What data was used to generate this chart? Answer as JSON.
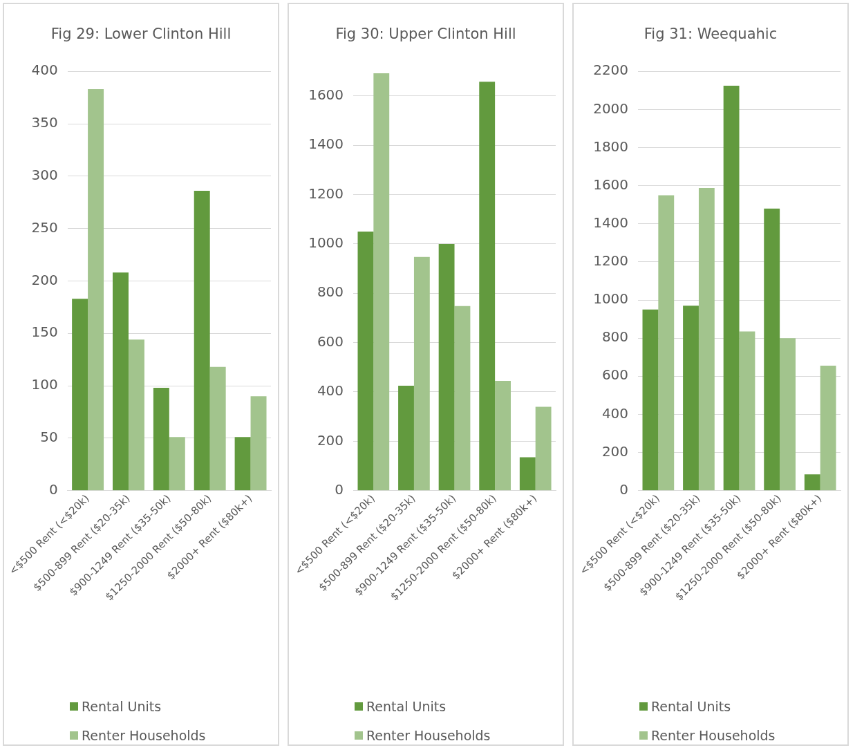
{
  "chart_data": [
    {
      "type": "bar",
      "title": "Fig 29: Lower Clinton Hill",
      "categories": [
        "<$500 Rent (<$20k)",
        "$500-899 Rent ($20-35k)",
        "$900-1249 Rent ($35-50k)",
        "$1250-2000 Rent ($50-80k)",
        "$2000+ Rent ($80k+)"
      ],
      "series": [
        {
          "name": "Rental Units",
          "color": "#629a3e",
          "values": [
            183,
            208,
            98,
            286,
            51
          ]
        },
        {
          "name": "Renter Households",
          "color": "#a2c48d",
          "values": [
            383,
            144,
            51,
            118,
            90
          ]
        }
      ],
      "ylim": [
        0,
        400
      ],
      "yticks": [
        0,
        50,
        100,
        150,
        200,
        250,
        300,
        350,
        400
      ],
      "grid": "y",
      "legend": "bottom"
    },
    {
      "type": "bar",
      "title": "Fig 30: Upper Clinton Hill",
      "categories": [
        "<$500 Rent (<$20k)",
        "$500-899 Rent ($20-35k)",
        "$900-1249 Rent ($35-50k)",
        "$1250-2000 Rent ($50-80k)",
        "$2000+ Rent ($80k+)"
      ],
      "series": [
        {
          "name": "Rental Units",
          "color": "#629a3e",
          "values": [
            1050,
            425,
            1000,
            1658,
            135
          ]
        },
        {
          "name": "Renter Households",
          "color": "#a2c48d",
          "values": [
            1692,
            947,
            748,
            445,
            340
          ]
        }
      ],
      "ylim": [
        0,
        1700
      ],
      "yticks": [
        0,
        200,
        400,
        600,
        800,
        1000,
        1200,
        1400,
        1600
      ],
      "grid": "y",
      "legend": "bottom"
    },
    {
      "type": "bar",
      "title": "Fig 31: Weequahic",
      "categories": [
        "<$500 Rent (<$20k)",
        "$500-899 Rent ($20-35k)",
        "$900-1249 Rent ($35-50k)",
        "$1250-2000 Rent ($50-80k)",
        "$2000+ Rent ($80k+)"
      ],
      "series": [
        {
          "name": "Rental Units",
          "color": "#629a3e",
          "values": [
            950,
            970,
            2125,
            1480,
            85
          ]
        },
        {
          "name": "Renter Households",
          "color": "#a2c48d",
          "values": [
            1550,
            1588,
            835,
            800,
            655
          ]
        }
      ],
      "ylim": [
        0,
        2200
      ],
      "yticks": [
        0,
        200,
        400,
        600,
        800,
        1000,
        1200,
        1400,
        1600,
        1800,
        2000,
        2200
      ],
      "grid": "y",
      "legend": "bottom"
    }
  ]
}
